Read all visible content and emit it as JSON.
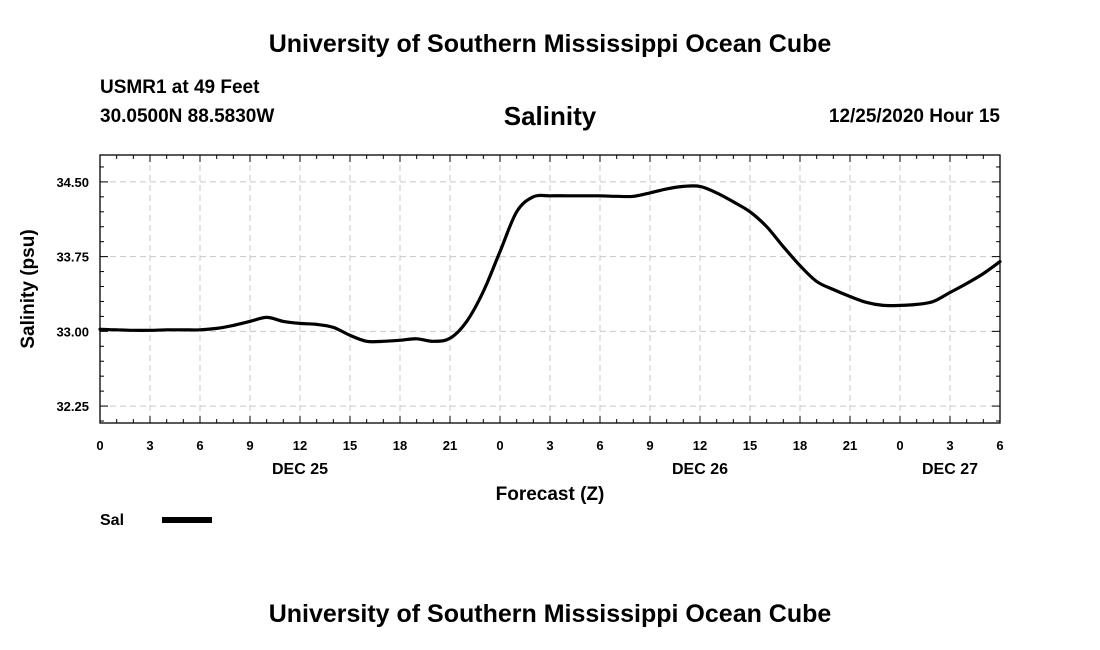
{
  "header": {
    "title": "University of Southern Mississippi Ocean Cube",
    "station": "USMR1 at 49 Feet",
    "location": "30.0500N 88.5830W",
    "datetime": "12/25/2020 Hour 15"
  },
  "footer": {
    "title": "University of Southern Mississippi Ocean Cube"
  },
  "legend": {
    "label": "Sal",
    "color": "#000000"
  },
  "chart_data": {
    "type": "line",
    "title": "Salinity",
    "xlabel": "Forecast (Z)",
    "ylabel": "Salinity (psu)",
    "ylim": [
      32.08,
      34.77
    ],
    "xlim": [
      0,
      54
    ],
    "yticks": [
      "32.25",
      "33.00",
      "33.75",
      "34.50"
    ],
    "ytick_values": [
      32.25,
      33.0,
      33.75,
      34.5
    ],
    "xticks": [
      "0",
      "3",
      "6",
      "9",
      "12",
      "15",
      "18",
      "21",
      "0",
      "3",
      "6",
      "9",
      "12",
      "15",
      "18",
      "21",
      "0",
      "3",
      "6"
    ],
    "day_labels": [
      {
        "label": "DEC 25",
        "hour": 12
      },
      {
        "label": "DEC 26",
        "hour": 36
      },
      {
        "label": "DEC 27",
        "hour": 51
      }
    ],
    "grid": true,
    "series": [
      {
        "name": "Sal",
        "color": "#000000",
        "x": [
          0,
          1,
          2,
          3,
          4,
          5,
          6,
          7,
          8,
          9,
          10,
          11,
          12,
          13,
          14,
          15,
          16,
          17,
          18,
          19,
          20,
          21,
          22,
          23,
          24,
          25,
          26,
          27,
          28,
          29,
          30,
          31,
          32,
          33,
          34,
          35,
          36,
          37,
          38,
          39,
          40,
          41,
          42,
          43,
          44,
          45,
          46,
          47,
          48,
          49,
          50,
          51,
          52,
          53,
          54
        ],
        "values": [
          33.02,
          33.015,
          33.01,
          33.01,
          33.015,
          33.015,
          33.015,
          33.03,
          33.06,
          33.1,
          33.14,
          33.1,
          33.08,
          33.07,
          33.04,
          32.96,
          32.9,
          32.9,
          32.91,
          32.925,
          32.9,
          32.93,
          33.1,
          33.4,
          33.8,
          34.2,
          34.35,
          34.36,
          34.36,
          34.36,
          34.36,
          34.355,
          34.355,
          34.39,
          34.43,
          34.455,
          34.455,
          34.39,
          34.3,
          34.2,
          34.05,
          33.85,
          33.66,
          33.5,
          33.42,
          33.35,
          33.29,
          33.26,
          33.26,
          33.27,
          33.3,
          33.39,
          33.48,
          33.58,
          33.7
        ]
      }
    ]
  }
}
